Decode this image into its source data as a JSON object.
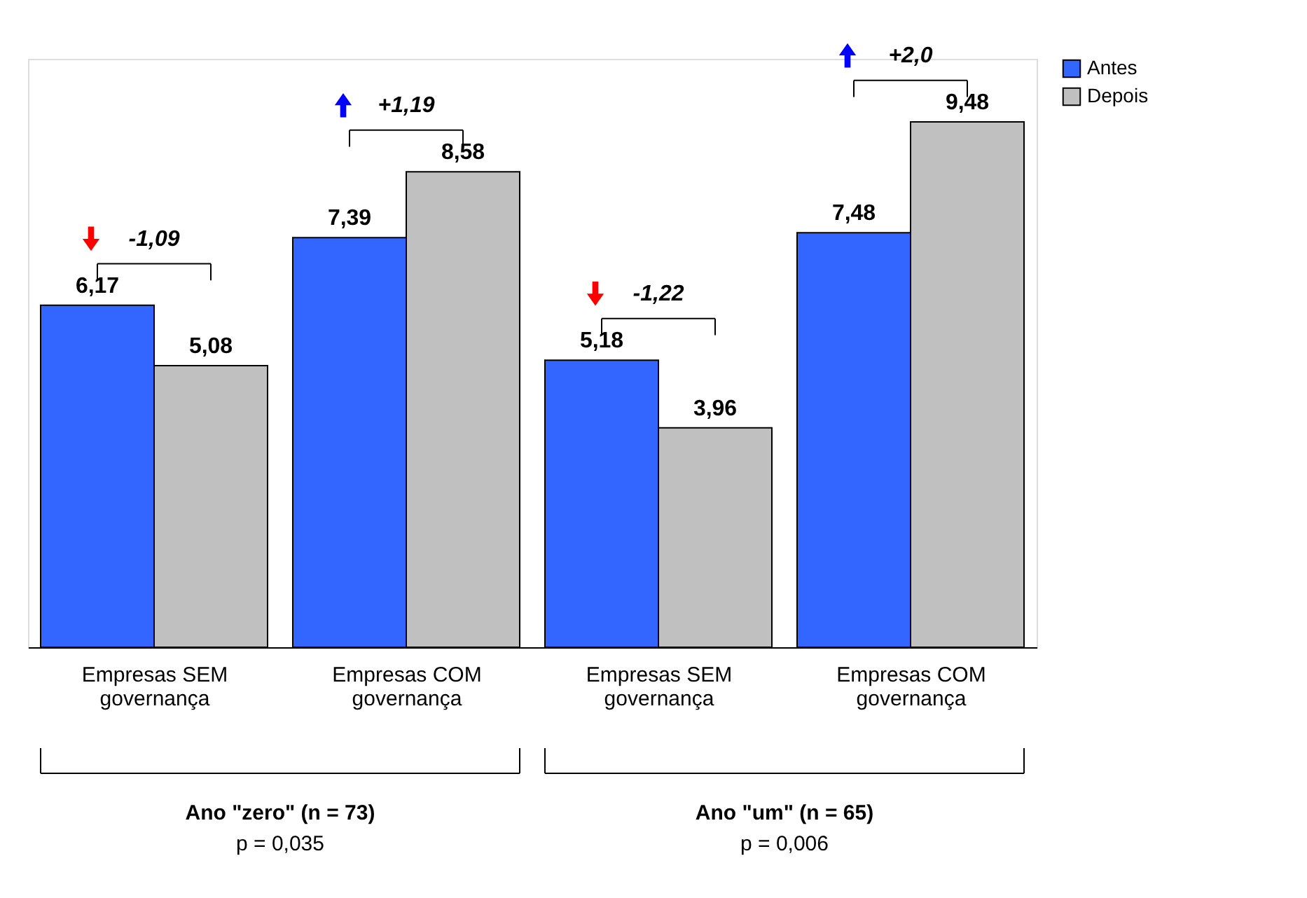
{
  "chart_data": {
    "type": "bar",
    "categories": [
      "Empresas SEM governança",
      "Empresas COM governança",
      "Empresas SEM governança",
      "Empresas COM governança"
    ],
    "series": [
      {
        "name": "Antes",
        "color": "#3366ff",
        "values": [
          6.17,
          7.39,
          5.18,
          7.48
        ],
        "value_labels": [
          "6,17",
          "7,39",
          "5,18",
          "7,48"
        ]
      },
      {
        "name": "Depois",
        "color": "#c0c0c0",
        "values": [
          5.08,
          8.58,
          3.96,
          9.48
        ],
        "value_labels": [
          "5,08",
          "8,58",
          "3,96",
          "9,48"
        ]
      }
    ],
    "legend": "right",
    "grid": false,
    "annotations": [
      "-1,09",
      "+1,19",
      "-1,22",
      "+2,0",
      "Ano \"zero\" (n = 73)",
      "p = 0,035",
      "Ano \"um\" (n = 65)",
      "p = 0,006"
    ]
  }
}
